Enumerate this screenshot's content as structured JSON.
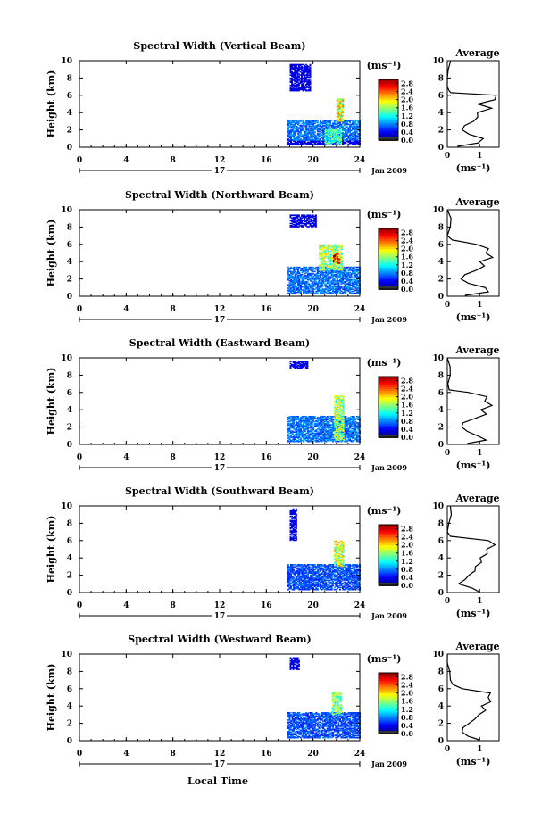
{
  "figure": {
    "x_axis_label": "Local Time",
    "date_label": "Jan 2009",
    "day_label": "17",
    "colorbar_unit": "(ms⁻¹)",
    "avg_title": "Average",
    "avg_xlabel": "(ms⁻¹)",
    "ylabel": "Height (km)"
  },
  "chart_data": [
    {
      "type": "heatmap",
      "title": "Spectral Width (Vertical Beam)",
      "xlabel": "",
      "ylabel": "Height (km)",
      "xlim": [
        0,
        24
      ],
      "ylim": [
        0,
        10
      ],
      "x_ticks": [
        0,
        4,
        8,
        12,
        16,
        20,
        24
      ],
      "y_ticks": [
        0,
        2,
        4,
        6,
        8,
        10
      ],
      "colorbar": {
        "unit": "(ms⁻¹)",
        "ticks": [
          0.0,
          0.4,
          0.8,
          1.2,
          1.6,
          2.0,
          2.4,
          2.8
        ],
        "range": [
          0,
          3.0
        ]
      },
      "data_time_range_hours": [
        17.8,
        24
      ],
      "data_regions": [
        {
          "t": [
            17.8,
            24
          ],
          "h": [
            0.3,
            0.8
          ],
          "value": 0.3
        },
        {
          "t": [
            17.8,
            24
          ],
          "h": [
            0.8,
            3.2
          ],
          "value": 0.7
        },
        {
          "t": [
            21.0,
            22.4
          ],
          "h": [
            0.4,
            2.0
          ],
          "value": 1.3
        },
        {
          "t": [
            22.0,
            22.6
          ],
          "h": [
            3.0,
            5.6
          ],
          "value": 1.8
        },
        {
          "t": [
            18.0,
            19.8
          ],
          "h": [
            6.5,
            9.6
          ],
          "value": 0.3
        }
      ],
      "average_profile": {
        "xlim": [
          0,
          1.6
        ],
        "x_ticks": [
          0,
          1
        ],
        "height_km": [
          0.1,
          0.5,
          1.0,
          1.5,
          2.0,
          2.5,
          3.0,
          3.5,
          4.0,
          4.5,
          5.0,
          5.5,
          6.0,
          6.3,
          6.5,
          7.0,
          8.0,
          9.0,
          10.0
        ],
        "width_ms": [
          0.3,
          1.0,
          1.1,
          0.6,
          0.4,
          0.5,
          0.8,
          1.0,
          0.9,
          1.3,
          1.0,
          1.4,
          1.5,
          0.1,
          0.05,
          0.05,
          0.03,
          0.05,
          0.03
        ]
      }
    },
    {
      "type": "heatmap",
      "title": "Spectral Width (Northward Beam)",
      "xlabel": "",
      "ylabel": "Height (km)",
      "xlim": [
        0,
        24
      ],
      "ylim": [
        0,
        10
      ],
      "x_ticks": [
        0,
        4,
        8,
        12,
        16,
        20,
        24
      ],
      "y_ticks": [
        0,
        2,
        4,
        6,
        8,
        10
      ],
      "colorbar": {
        "unit": "(ms⁻¹)",
        "ticks": [
          0.0,
          0.4,
          0.8,
          1.2,
          1.6,
          2.0,
          2.4,
          2.8
        ],
        "range": [
          0,
          3.0
        ]
      },
      "data_time_range_hours": [
        17.8,
        24
      ],
      "data_regions": [
        {
          "t": [
            17.8,
            24
          ],
          "h": [
            0.3,
            3.4
          ],
          "value": 0.7
        },
        {
          "t": [
            20.5,
            22.5
          ],
          "h": [
            3.0,
            6.0
          ],
          "value": 1.6
        },
        {
          "t": [
            21.7,
            22.3
          ],
          "h": [
            3.8,
            5.0
          ],
          "value": 2.6
        },
        {
          "t": [
            18.0,
            20.2
          ],
          "h": [
            8.0,
            9.4
          ],
          "value": 0.3
        }
      ],
      "average_profile": {
        "xlim": [
          0,
          1.6
        ],
        "x_ticks": [
          0,
          1
        ],
        "height_km": [
          0.1,
          0.5,
          1.0,
          1.5,
          2.0,
          2.5,
          3.0,
          3.5,
          4.0,
          4.5,
          5.0,
          5.5,
          6.0,
          6.5,
          7.0,
          8.0,
          9.0,
          10.0
        ],
        "width_ms": [
          0.5,
          1.2,
          1.1,
          0.7,
          0.4,
          0.5,
          0.9,
          1.2,
          1.0,
          1.4,
          1.2,
          1.3,
          0.9,
          0.1,
          0.05,
          0.03,
          0.05,
          0.03
        ]
      }
    },
    {
      "type": "heatmap",
      "title": "Spectral Width (Eastward Beam)",
      "xlabel": "",
      "ylabel": "Height (km)",
      "xlim": [
        0,
        24
      ],
      "ylim": [
        0,
        10
      ],
      "x_ticks": [
        0,
        4,
        8,
        12,
        16,
        20,
        24
      ],
      "y_ticks": [
        0,
        2,
        4,
        6,
        8,
        10
      ],
      "colorbar": {
        "unit": "(ms⁻¹)",
        "ticks": [
          0.0,
          0.4,
          0.8,
          1.2,
          1.6,
          2.0,
          2.4,
          2.8
        ],
        "range": [
          0,
          3.0
        ]
      },
      "data_time_range_hours": [
        17.8,
        24
      ],
      "data_regions": [
        {
          "t": [
            17.8,
            24
          ],
          "h": [
            0.3,
            3.2
          ],
          "value": 0.7
        },
        {
          "t": [
            21.8,
            22.6
          ],
          "h": [
            0.5,
            5.6
          ],
          "value": 1.6
        },
        {
          "t": [
            18.0,
            19.5
          ],
          "h": [
            8.8,
            9.6
          ],
          "value": 0.3
        }
      ],
      "average_profile": {
        "xlim": [
          0,
          1.6
        ],
        "x_ticks": [
          0,
          1
        ],
        "height_km": [
          0.1,
          0.5,
          1.0,
          1.5,
          2.0,
          2.5,
          3.0,
          3.5,
          4.0,
          4.5,
          5.0,
          5.5,
          6.0,
          6.3,
          7.0,
          8.0,
          9.0,
          10.0
        ],
        "width_ms": [
          0.6,
          1.2,
          1.0,
          0.6,
          0.4,
          0.5,
          0.9,
          1.2,
          1.1,
          1.4,
          1.2,
          1.3,
          0.6,
          0.1,
          0.05,
          0.03,
          0.05,
          0.03
        ]
      }
    },
    {
      "type": "heatmap",
      "title": "Spectral Width (Southward Beam)",
      "xlabel": "",
      "ylabel": "Height (km)",
      "xlim": [
        0,
        24
      ],
      "ylim": [
        0,
        10
      ],
      "x_ticks": [
        0,
        4,
        8,
        12,
        16,
        20,
        24
      ],
      "y_ticks": [
        0,
        2,
        4,
        6,
        8,
        10
      ],
      "colorbar": {
        "unit": "(ms⁻¹)",
        "ticks": [
          0.0,
          0.4,
          0.8,
          1.2,
          1.6,
          2.0,
          2.4,
          2.8
        ],
        "range": [
          0,
          3.0
        ]
      },
      "data_time_range_hours": [
        17.8,
        24
      ],
      "data_regions": [
        {
          "t": [
            17.8,
            24
          ],
          "h": [
            0.3,
            3.2
          ],
          "value": 0.6
        },
        {
          "t": [
            21.8,
            22.6
          ],
          "h": [
            3.0,
            6.0
          ],
          "value": 1.7
        },
        {
          "t": [
            18.0,
            18.6
          ],
          "h": [
            6.0,
            9.6
          ],
          "value": 0.3
        }
      ],
      "average_profile": {
        "xlim": [
          0,
          1.6
        ],
        "x_ticks": [
          0,
          1
        ],
        "height_km": [
          0.1,
          0.5,
          1.0,
          1.5,
          2.0,
          2.5,
          3.0,
          3.5,
          4.0,
          4.5,
          5.0,
          5.5,
          6.0,
          6.5,
          7.0,
          8.0,
          9.0,
          10.0
        ],
        "width_ms": [
          1.0,
          0.8,
          0.4,
          0.5,
          0.7,
          0.8,
          0.9,
          1.1,
          1.0,
          1.3,
          1.2,
          1.5,
          1.2,
          0.1,
          0.05,
          0.05,
          0.08,
          0.05
        ]
      }
    },
    {
      "type": "heatmap",
      "title": "Spectral Width (Westward Beam)",
      "xlabel": "Local Time",
      "ylabel": "Height (km)",
      "xlim": [
        0,
        24
      ],
      "ylim": [
        0,
        10
      ],
      "x_ticks": [
        0,
        4,
        8,
        12,
        16,
        20,
        24
      ],
      "y_ticks": [
        0,
        2,
        4,
        6,
        8,
        10
      ],
      "colorbar": {
        "unit": "(ms⁻¹)",
        "ticks": [
          0.0,
          0.4,
          0.8,
          1.2,
          1.6,
          2.0,
          2.4,
          2.8
        ],
        "range": [
          0,
          3.0
        ]
      },
      "data_time_range_hours": [
        17.8,
        24
      ],
      "data_regions": [
        {
          "t": [
            17.8,
            24
          ],
          "h": [
            0.3,
            3.2
          ],
          "value": 0.6
        },
        {
          "t": [
            21.6,
            22.4
          ],
          "h": [
            3.0,
            5.6
          ],
          "value": 1.5
        },
        {
          "t": [
            18.0,
            18.8
          ],
          "h": [
            8.2,
            9.6
          ],
          "value": 0.3
        }
      ],
      "average_profile": {
        "xlim": [
          0,
          1.6
        ],
        "x_ticks": [
          0,
          1
        ],
        "height_km": [
          0.1,
          0.5,
          1.0,
          1.5,
          2.0,
          2.5,
          3.0,
          3.5,
          4.0,
          4.5,
          5.0,
          5.5,
          6.0,
          6.5,
          7.0,
          8.0,
          9.0,
          10.0
        ],
        "width_ms": [
          1.0,
          0.7,
          0.4,
          0.5,
          0.7,
          0.9,
          1.0,
          1.2,
          1.1,
          1.4,
          1.2,
          1.3,
          0.5,
          0.1,
          0.05,
          0.05,
          0.05,
          0.03
        ]
      }
    }
  ]
}
